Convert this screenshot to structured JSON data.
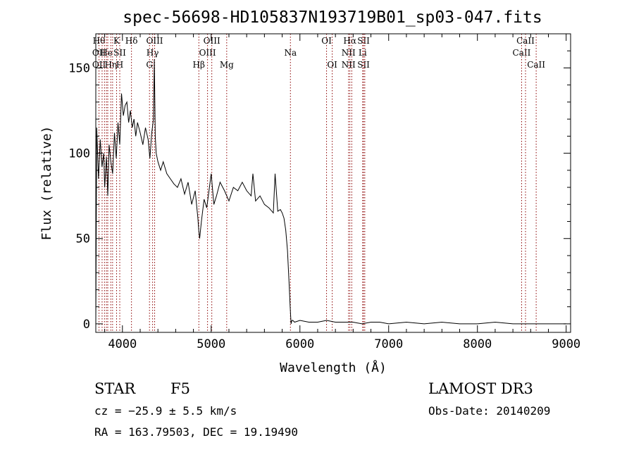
{
  "chart_data": {
    "type": "line",
    "title": "spec-56698-HD105837N193719B01_sp03-047.fits",
    "xlabel": "Wavelength (Å)",
    "ylabel": "Flux (relative)",
    "xlim": [
      3700,
      9050
    ],
    "ylim": [
      -5,
      170
    ],
    "xticks": [
      4000,
      5000,
      6000,
      7000,
      8000,
      9000
    ],
    "yticks": [
      0,
      50,
      100,
      150
    ],
    "line_color": "#000000",
    "marker_color": "#8b0000",
    "series": [
      {
        "x": [
          3700,
          3710,
          3730,
          3750,
          3770,
          3790,
          3800,
          3820,
          3835,
          3850,
          3870,
          3890,
          3910,
          3930,
          3950,
          3970,
          3990,
          4010,
          4030,
          4050,
          4070,
          4090,
          4110,
          4130,
          4150,
          4170,
          4200,
          4230,
          4260,
          4290,
          4310,
          4330,
          4350,
          4360,
          4370,
          4380,
          4400,
          4430,
          4460,
          4500,
          4540,
          4580,
          4620,
          4660,
          4700,
          4740,
          4780,
          4820,
          4850,
          4860,
          4870,
          4890,
          4920,
          4950,
          4980,
          5000,
          5030,
          5060,
          5100,
          5150,
          5200,
          5250,
          5300,
          5350,
          5400,
          5450,
          5470,
          5500,
          5550,
          5600,
          5650,
          5700,
          5720,
          5750,
          5780,
          5800,
          5820,
          5840,
          5860,
          5870,
          5880,
          5890,
          5900,
          5910,
          5920,
          5940,
          6000,
          6100,
          6200,
          6300,
          6400,
          6500,
          6600,
          6700,
          6800,
          6900,
          7000,
          7200,
          7400,
          7600,
          7800,
          8000,
          8200,
          8400,
          8600,
          8800,
          9000
        ],
        "y": [
          0,
          115,
          85,
          108,
          92,
          100,
          80,
          98,
          75,
          105,
          95,
          88,
          112,
          97,
          118,
          105,
          135,
          122,
          128,
          130,
          118,
          125,
          115,
          120,
          110,
          118,
          112,
          105,
          115,
          108,
          97,
          112,
          120,
          155,
          110,
          100,
          95,
          90,
          95,
          88,
          85,
          82,
          80,
          85,
          76,
          83,
          70,
          78,
          62,
          55,
          50,
          60,
          73,
          68,
          80,
          88,
          70,
          75,
          83,
          78,
          72,
          80,
          78,
          83,
          78,
          75,
          88,
          72,
          75,
          70,
          68,
          65,
          88,
          66,
          67,
          65,
          62,
          55,
          43,
          32,
          22,
          10,
          0,
          2,
          2,
          1,
          2,
          1,
          1,
          2,
          1,
          1,
          1,
          0,
          1,
          1,
          0,
          1,
          0,
          1,
          0,
          0,
          1,
          0,
          0,
          0,
          0
        ]
      }
    ],
    "lines": [
      {
        "x": 3736,
        "labels": [
          "Hθ",
          "OII",
          "OII"
        ]
      },
      {
        "x": 3771,
        "labels": []
      },
      {
        "x": 3798,
        "labels": []
      },
      {
        "x": 3820,
        "labels": [
          "",
          "He",
          ""
        ]
      },
      {
        "x": 3835,
        "labels": []
      },
      {
        "x": 3869,
        "labels": [
          "",
          "",
          "Hη"
        ]
      },
      {
        "x": 3889,
        "labels": []
      },
      {
        "x": 3934,
        "labels": [
          "K",
          "",
          ""
        ]
      },
      {
        "x": 3970,
        "labels": [
          "",
          "SII",
          "H"
        ]
      },
      {
        "x": 4102,
        "labels": [
          "Hδ",
          "",
          ""
        ]
      },
      {
        "x": 4340,
        "labels": [
          "",
          "Hγ",
          ""
        ]
      },
      {
        "x": 4305,
        "labels": [
          "",
          "",
          "G"
        ]
      },
      {
        "x": 4363,
        "labels": [
          "OIII",
          "",
          ""
        ]
      },
      {
        "x": 4861,
        "labels": [
          "",
          "",
          "Hβ"
        ]
      },
      {
        "x": 4959,
        "labels": [
          "",
          "OIII",
          ""
        ]
      },
      {
        "x": 5007,
        "labels": [
          "OIII",
          "",
          ""
        ]
      },
      {
        "x": 5175,
        "labels": [
          "",
          "",
          "Mg"
        ]
      },
      {
        "x": 5893,
        "labels": [
          "",
          "Na",
          ""
        ]
      },
      {
        "x": 6300,
        "labels": [
          "OI",
          "",
          ""
        ]
      },
      {
        "x": 6364,
        "labels": [
          "",
          "",
          "OI"
        ]
      },
      {
        "x": 6548,
        "labels": [
          "",
          "NII",
          "NII"
        ]
      },
      {
        "x": 6563,
        "labels": [
          "Hα",
          "",
          ""
        ]
      },
      {
        "x": 6584,
        "labels": []
      },
      {
        "x": 6707,
        "labels": [
          "",
          "Li",
          ""
        ]
      },
      {
        "x": 6717,
        "labels": [
          "SII",
          "",
          "SII"
        ]
      },
      {
        "x": 6731,
        "labels": []
      },
      {
        "x": 8498,
        "labels": [
          "",
          "CaII",
          ""
        ]
      },
      {
        "x": 8542,
        "labels": [
          "CaII",
          "",
          ""
        ]
      },
      {
        "x": 8662,
        "labels": [
          "",
          "",
          "CaII"
        ]
      }
    ]
  },
  "info": {
    "class": "STAR",
    "subclass": "F5",
    "survey": "LAMOST DR3",
    "cz": "cz = −25.9 ± 5.5 km/s",
    "obs_date": "Obs-Date: 20140209",
    "radec": "RA = 163.79503, DEC =  19.19490"
  }
}
